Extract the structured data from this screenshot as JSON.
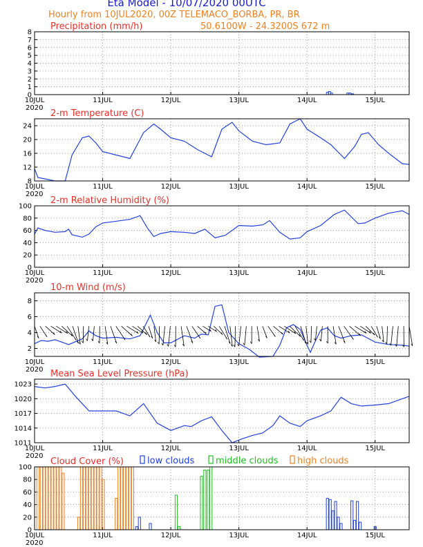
{
  "header": {
    "title": "Eta Model - 10/07/2020 00UTC",
    "line2": "Hourly from 10JUL2020, 00Z  TELEMACO_BORBA, PR, BR",
    "line3": "50.6100W - 24.3200S     672  m"
  },
  "colors": {
    "series": "#2040e0",
    "title": "#e8302a",
    "orange": "#f08020",
    "green": "#20c020",
    "blue": "#2040e0"
  },
  "chart_data": [
    {
      "type": "bar",
      "title": "Precipitation (mm/h)",
      "days": [
        "10JUL",
        "11JUL",
        "12JUL",
        "13JUL",
        "14JUL",
        "15JUL"
      ],
      "year": "2020",
      "ylim": [
        0,
        8
      ],
      "yticks": [
        "0",
        "1",
        "2",
        "3",
        "4",
        "5",
        "6",
        "7",
        "8"
      ],
      "x": [
        4.3,
        4.33,
        4.36,
        4.6,
        4.63,
        4.67
      ],
      "y": [
        0.3,
        0.4,
        0.2,
        0.2,
        0.2,
        0.1
      ]
    },
    {
      "type": "line",
      "title": "2-m Temperature (C)",
      "days": [
        "10JUL",
        "11JUL",
        "12JUL",
        "13JUL",
        "14JUL",
        "15JUL"
      ],
      "year": "2020",
      "ylim": [
        8,
        26
      ],
      "yticks": [
        "8",
        "12",
        "16",
        "20",
        "24"
      ],
      "x": [
        0,
        0.05,
        0.3,
        0.45,
        0.55,
        0.7,
        0.8,
        0.9,
        1.0,
        1.2,
        1.4,
        1.6,
        1.75,
        1.85,
        2.0,
        2.2,
        2.4,
        2.6,
        2.75,
        2.9,
        3.0,
        3.2,
        3.4,
        3.6,
        3.75,
        3.9,
        4.0,
        4.2,
        4.35,
        4.55,
        4.7,
        4.8,
        4.9,
        5.05,
        5.2,
        5.4,
        5.5
      ],
      "y": [
        11.5,
        9,
        8,
        8,
        15.5,
        20.5,
        21,
        19,
        16.5,
        15.5,
        14.5,
        22,
        24.5,
        23,
        20.5,
        19.5,
        17,
        15,
        23,
        25,
        22.5,
        19.5,
        18.5,
        19,
        24.5,
        26,
        23,
        20.5,
        18.5,
        14.5,
        18,
        21.5,
        22,
        18.5,
        16,
        13,
        12.8
      ]
    },
    {
      "type": "line",
      "title": "2-m Relative Humidity (%)",
      "days": [
        "10JUL",
        "11JUL",
        "12JUL",
        "13JUL",
        "14JUL",
        "15JUL"
      ],
      "year": "2020",
      "ylim": [
        0,
        100
      ],
      "yticks": [
        "0",
        "20",
        "40",
        "60",
        "80",
        "100"
      ],
      "x": [
        0,
        0.05,
        0.15,
        0.3,
        0.45,
        0.5,
        0.55,
        0.7,
        0.8,
        0.9,
        1.0,
        1.2,
        1.4,
        1.55,
        1.65,
        1.75,
        1.85,
        2.0,
        2.2,
        2.35,
        2.5,
        2.65,
        2.8,
        3.0,
        3.2,
        3.35,
        3.45,
        3.6,
        3.75,
        3.9,
        4.0,
        4.2,
        4.4,
        4.55,
        4.65,
        4.75,
        4.85,
        5.0,
        5.2,
        5.4,
        5.5
      ],
      "y": [
        54,
        64,
        60,
        57,
        58,
        62,
        53,
        49,
        54,
        66,
        72,
        75,
        78,
        84,
        65,
        50,
        55,
        58,
        57,
        55,
        62,
        48,
        52,
        68,
        67,
        69,
        76,
        57,
        46,
        48,
        58,
        68,
        86,
        93,
        82,
        71,
        72,
        80,
        88,
        92,
        86
      ]
    },
    {
      "type": "line",
      "title": "10-m Wind (m/s)",
      "days": [
        "10JUL",
        "11JUL",
        "12JUL",
        "13JUL",
        "14JUL",
        "15JUL"
      ],
      "year": "2020",
      "ylim": [
        1,
        9
      ],
      "yticks": [
        "2",
        "4",
        "6",
        "8"
      ],
      "x": [
        0,
        0.1,
        0.2,
        0.3,
        0.5,
        0.7,
        0.8,
        0.9,
        1.0,
        1.2,
        1.4,
        1.55,
        1.7,
        1.8,
        1.9,
        2.0,
        2.2,
        2.35,
        2.45,
        2.55,
        2.65,
        2.75,
        2.85,
        3.0,
        3.15,
        3.3,
        3.5,
        3.6,
        3.7,
        3.8,
        3.9,
        4.0,
        4.05,
        4.1,
        4.2,
        4.3,
        4.4,
        4.5,
        4.65,
        4.8,
        5.0,
        5.2,
        5.4,
        5.5
      ],
      "y": [
        2.6,
        3.0,
        2.9,
        3.1,
        2.5,
        3.2,
        4.2,
        3.6,
        3.3,
        3.4,
        3.2,
        3.6,
        6.2,
        4.0,
        2.7,
        2.7,
        3.6,
        3.3,
        3.8,
        3.7,
        7.3,
        7.5,
        4.0,
        2.6,
        1.9,
        0.9,
        1.0,
        2.4,
        4.6,
        5.0,
        4.4,
        2.4,
        1.5,
        2.5,
        4.3,
        4.6,
        3.6,
        3.3,
        3.6,
        3.7,
        2.8,
        2.5,
        2.4,
        2.3
      ],
      "arrow_band_y": 4.8,
      "arrow_count": 70
    },
    {
      "type": "line",
      "title": "Mean Sea Level Pressure (hPa)",
      "days": [
        "10JUL",
        "11JUL",
        "12JUL",
        "13JUL",
        "14JUL",
        "15JUL"
      ],
      "year": "2020",
      "ylim": [
        1011,
        1024
      ],
      "yticks": [
        "1011",
        "1014",
        "1017",
        "1020",
        "1023"
      ],
      "x": [
        0,
        0.15,
        0.3,
        0.45,
        0.6,
        0.8,
        1.0,
        1.2,
        1.4,
        1.6,
        1.8,
        2.0,
        2.2,
        2.3,
        2.45,
        2.6,
        2.75,
        2.9,
        3.05,
        3.2,
        3.35,
        3.5,
        3.6,
        3.75,
        3.9,
        4.0,
        4.2,
        4.35,
        4.5,
        4.65,
        4.8,
        5.0,
        5.2,
        5.4,
        5.5
      ],
      "y": [
        1022.5,
        1022.2,
        1022.5,
        1023,
        1020.5,
        1017.5,
        1017.5,
        1017.5,
        1016.5,
        1019,
        1015,
        1013.5,
        1014.5,
        1014.3,
        1015.5,
        1016.3,
        1013.5,
        1011,
        1011.8,
        1012.5,
        1013,
        1014.5,
        1016.5,
        1015,
        1014.3,
        1015.5,
        1016.5,
        1017.5,
        1020.3,
        1019,
        1018.5,
        1018.7,
        1019,
        1020,
        1020.5
      ]
    },
    {
      "type": "bar",
      "title": "Cloud Cover (%)",
      "days": [
        "10JUL",
        "11JUL",
        "12JUL",
        "13JUL",
        "14JUL",
        "15JUL"
      ],
      "year": "2020",
      "ylim": [
        0,
        100
      ],
      "yticks": [
        "0",
        "20",
        "40",
        "60",
        "80",
        "100"
      ],
      "legend": [
        "low clouds",
        "middle clouds",
        "high clouds"
      ],
      "series": [
        {
          "name": "high clouds",
          "color": "#f08020",
          "x": [
            0.05,
            0.1,
            0.14,
            0.18,
            0.22,
            0.26,
            0.3,
            0.34,
            0.38,
            0.42,
            0.65,
            0.69,
            0.73,
            0.77,
            0.81,
            0.85,
            0.89,
            0.93,
            0.97,
            1.01,
            1.2,
            1.24,
            1.28,
            1.32,
            1.36,
            1.4,
            1.44
          ],
          "values": [
            100,
            100,
            100,
            100,
            100,
            100,
            100,
            100,
            100,
            90,
            20,
            100,
            100,
            100,
            100,
            100,
            100,
            100,
            100,
            80,
            50,
            100,
            100,
            100,
            100,
            100,
            100
          ]
        },
        {
          "name": "middle clouds",
          "color": "#20c020",
          "x": [
            2.08,
            2.12,
            2.45,
            2.5,
            2.55,
            2.59
          ],
          "values": [
            55,
            5,
            85,
            95,
            95,
            100
          ]
        },
        {
          "name": "low clouds",
          "color": "#2040e0",
          "x": [
            1.5,
            1.54,
            1.7,
            4.3,
            4.34,
            4.38,
            4.42,
            4.46,
            4.5,
            4.66,
            4.7,
            4.74,
            4.78,
            5.0
          ],
          "values": [
            5,
            20,
            10,
            50,
            48,
            30,
            45,
            20,
            10,
            46,
            15,
            45,
            12,
            5
          ]
        }
      ]
    }
  ]
}
